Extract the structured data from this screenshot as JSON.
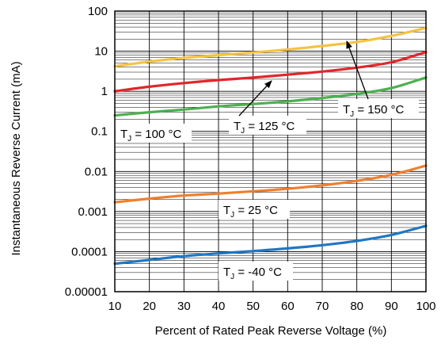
{
  "chart_data": {
    "type": "line",
    "xlabel": "Percent of Rated Peak Reverse Voltage (%)",
    "ylabel": "Instantaneous Reverse Current (mA)",
    "x_ticks": [
      10,
      20,
      30,
      40,
      50,
      60,
      70,
      80,
      90,
      100
    ],
    "x_tick_labels": [
      "10",
      "20",
      "30",
      "40",
      "50",
      "60",
      "70",
      "80",
      "90",
      "100"
    ],
    "xlim": [
      10,
      100
    ],
    "y_scale": "log",
    "ylim": [
      1e-05,
      100
    ],
    "y_ticks": [
      1e-05,
      0.0001,
      0.001,
      0.01,
      0.1,
      1,
      10,
      100
    ],
    "y_tick_labels": [
      "0.00001",
      "0.0001",
      "0.001",
      "0.01",
      "0.1",
      "1",
      "10",
      "100"
    ],
    "grid": true,
    "x": [
      10,
      20,
      30,
      40,
      50,
      60,
      70,
      80,
      90,
      100
    ],
    "series": [
      {
        "name": "T_J = 150 °C",
        "color": "#f5c242",
        "values": [
          4.2,
          5.5,
          6.8,
          8.0,
          9.3,
          11.0,
          13.5,
          17.0,
          24.0,
          38.0
        ]
      },
      {
        "name": "T_J = 125 °C",
        "color": "#e0272b",
        "values": [
          1.0,
          1.3,
          1.6,
          1.9,
          2.2,
          2.6,
          3.1,
          3.9,
          5.3,
          9.5
        ]
      },
      {
        "name": "T_J = 100 °C",
        "color": "#4db050",
        "values": [
          0.25,
          0.3,
          0.35,
          0.42,
          0.48,
          0.56,
          0.68,
          0.86,
          1.2,
          2.2
        ]
      },
      {
        "name": "T_J = 25 °C",
        "color": "#f07f2e",
        "values": [
          0.0017,
          0.0021,
          0.0025,
          0.0028,
          0.0032,
          0.0037,
          0.0045,
          0.0058,
          0.0082,
          0.014
        ]
      },
      {
        "name": "T_J = -40 °C",
        "color": "#1f77c4",
        "values": [
          5e-05,
          6.2e-05,
          7.7e-05,
          9e-05,
          0.000103,
          0.00012,
          0.000145,
          0.000185,
          0.00026,
          0.00044
        ]
      }
    ],
    "annotations": [
      {
        "main": "T",
        "sub": "J",
        "rest": " = 150 °C"
      },
      {
        "main": "T",
        "sub": "J",
        "rest": " = 125 °C"
      },
      {
        "main": "T",
        "sub": "J",
        "rest": " = 100 °C"
      },
      {
        "main": "T",
        "sub": "J",
        "rest": " = 25 °C"
      },
      {
        "main": "T",
        "sub": "J",
        "rest": " = -40 °C"
      }
    ]
  }
}
